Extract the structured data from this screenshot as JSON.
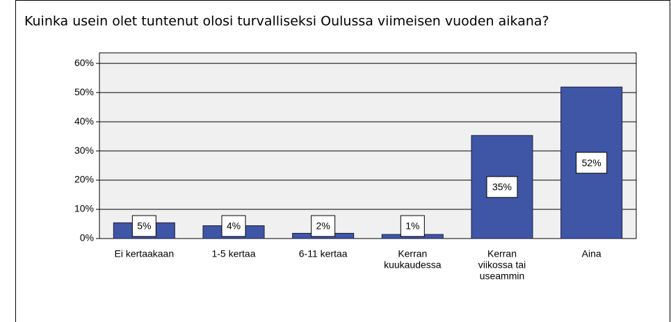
{
  "chart_data": {
    "type": "bar",
    "title": "Kuinka usein olet tuntenut olosi turvalliseksi Oulussa viimeisen vuoden aikana?",
    "categories": [
      [
        "Ei kertaakaan"
      ],
      [
        "1-5 kertaa"
      ],
      [
        "6-11 kertaa"
      ],
      [
        "Kerran",
        "kuukaudessa"
      ],
      [
        "Kerran",
        "viikossa tai",
        "useammin"
      ],
      [
        "Aina"
      ]
    ],
    "values": [
      5.4,
      4.4,
      1.8,
      1.4,
      35.3,
      51.9
    ],
    "value_labels": [
      "5%",
      "4%",
      "2%",
      "1%",
      "35%",
      "52%"
    ],
    "color": "#3f56a6",
    "ylim": [
      0,
      63.6
    ],
    "yticks": [
      {
        "value": 0,
        "label": "0%"
      },
      {
        "value": 10,
        "label": "10%"
      },
      {
        "value": 20,
        "label": "20%"
      },
      {
        "value": 30,
        "label": "30%"
      },
      {
        "value": 40,
        "label": "40%"
      },
      {
        "value": 50,
        "label": "50%"
      },
      {
        "value": 60,
        "label": "60%"
      }
    ],
    "grid": true
  }
}
